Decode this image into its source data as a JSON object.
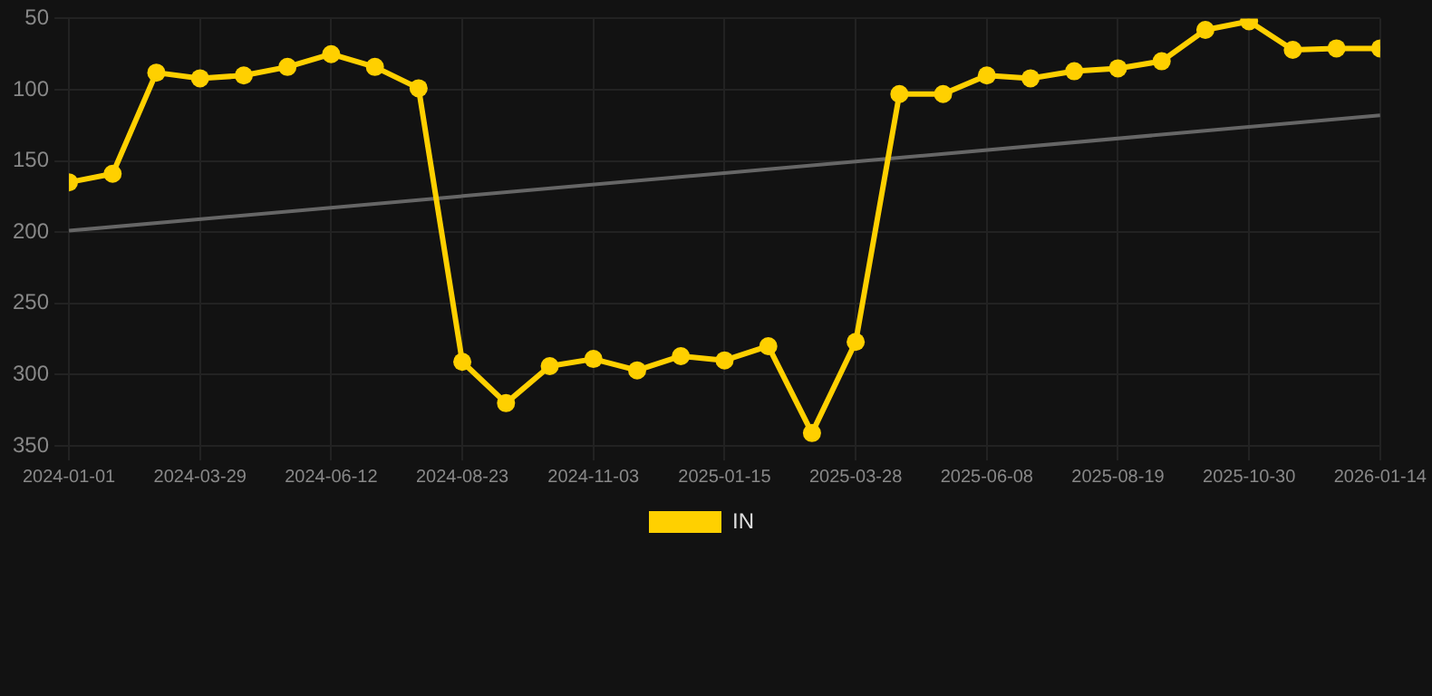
{
  "chart_data": {
    "type": "line",
    "categories": [
      "2024-01-01",
      null,
      null,
      "2024-03-29",
      null,
      null,
      "2024-06-12",
      null,
      null,
      "2024-08-23",
      null,
      null,
      "2024-11-03",
      null,
      null,
      "2025-01-15",
      null,
      null,
      "2025-03-28",
      null,
      null,
      "2025-06-08",
      null,
      null,
      "2025-08-19",
      null,
      null,
      "2025-10-30",
      null,
      null,
      "2026-01-14"
    ],
    "series": [
      {
        "name": "IN",
        "color": "#ffd000",
        "marker": "circle",
        "values": [
          165,
          159,
          88,
          92,
          90,
          84,
          75,
          84,
          99,
          291,
          320,
          294,
          289,
          297,
          287,
          290,
          280,
          341,
          277,
          103,
          103,
          90,
          92,
          87,
          85,
          80,
          58,
          52,
          72,
          71,
          71
        ]
      },
      {
        "type": "line",
        "color": "#666666",
        "marker": "none",
        "values": [
          199,
          null,
          null,
          null,
          null,
          null,
          null,
          null,
          null,
          null,
          null,
          null,
          null,
          null,
          null,
          null,
          null,
          null,
          null,
          null,
          null,
          null,
          null,
          null,
          null,
          null,
          null,
          null,
          null,
          null,
          118
        ]
      }
    ],
    "ylim": [
      350,
      50
    ],
    "yticks": [
      50,
      100,
      150,
      200,
      250,
      300,
      350
    ],
    "grid": true,
    "legend": "bottom"
  }
}
